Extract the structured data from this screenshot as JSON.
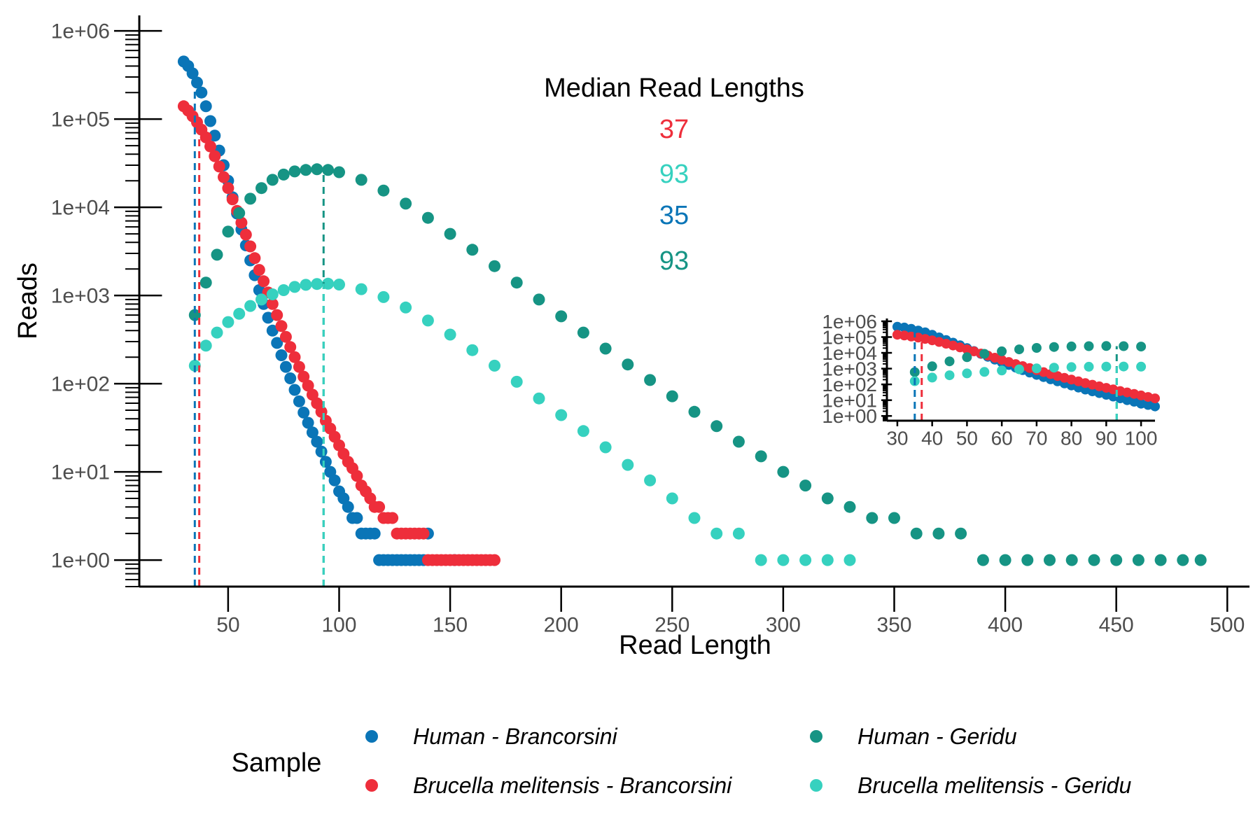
{
  "chart_data": {
    "type": "scatter",
    "xlabel": "Read Length",
    "ylabel": "Reads",
    "y_scale": "log10",
    "xlim": [
      10,
      510
    ],
    "ylim": [
      0.5,
      1500000
    ],
    "x_ticks": [
      "50",
      "100",
      "150",
      "200",
      "250",
      "300",
      "350",
      "400",
      "450",
      "500"
    ],
    "y_ticks": [
      "1e+00",
      "1e+01",
      "1e+02",
      "1e+03",
      "1e+04",
      "1e+05",
      "1e+06"
    ],
    "median_title": "Median Read Lengths",
    "medians": [
      {
        "series": "Brucella melitensis - Brancorsini",
        "value": "37",
        "color": "#ee2e3b"
      },
      {
        "series": "Brucella melitensis - Geridu",
        "value": "93",
        "color": "#36d1bf"
      },
      {
        "series": "Human - Brancorsini",
        "value": "35",
        "color": "#0a75b7"
      },
      {
        "series": "Human - Geridu",
        "value": "93",
        "color": "#169484"
      }
    ],
    "legend": {
      "title": "Sample",
      "position": "bottom",
      "items": [
        {
          "label": "Human - Brancorsini",
          "color": "#0a75b7"
        },
        {
          "label": "Brucella melitensis - Brancorsini",
          "color": "#ee2e3b"
        },
        {
          "label": "Human - Geridu",
          "color": "#169484"
        },
        {
          "label": "Brucella melitensis - Geridu",
          "color": "#36d1bf"
        }
      ]
    },
    "series": [
      {
        "name": "Human - Brancorsini",
        "color": "#0a75b7",
        "median": 35,
        "points": [
          [
            30,
            450000
          ],
          [
            32,
            400000
          ],
          [
            34,
            330000
          ],
          [
            36,
            260000
          ],
          [
            38,
            200000
          ],
          [
            40,
            140000
          ],
          [
            42,
            95000
          ],
          [
            44,
            65000
          ],
          [
            46,
            44000
          ],
          [
            48,
            30000
          ],
          [
            50,
            20000
          ],
          [
            52,
            13000
          ],
          [
            54,
            8500
          ],
          [
            56,
            5600
          ],
          [
            58,
            3700
          ],
          [
            60,
            2500
          ],
          [
            62,
            1700
          ],
          [
            64,
            1150
          ],
          [
            66,
            800
          ],
          [
            68,
            560
          ],
          [
            70,
            400
          ],
          [
            72,
            290
          ],
          [
            74,
            210
          ],
          [
            76,
            155
          ],
          [
            78,
            115
          ],
          [
            80,
            85
          ],
          [
            82,
            63
          ],
          [
            84,
            47
          ],
          [
            86,
            36
          ],
          [
            88,
            28
          ],
          [
            90,
            22
          ],
          [
            92,
            17
          ],
          [
            94,
            13
          ],
          [
            96,
            10
          ],
          [
            98,
            8
          ],
          [
            100,
            6
          ],
          [
            102,
            5
          ],
          [
            104,
            4
          ],
          [
            106,
            3
          ],
          [
            108,
            3
          ],
          [
            110,
            2
          ],
          [
            112,
            2
          ],
          [
            114,
            2
          ],
          [
            116,
            2
          ],
          [
            118,
            1
          ],
          [
            120,
            1
          ],
          [
            122,
            1
          ],
          [
            124,
            1
          ],
          [
            126,
            1
          ],
          [
            128,
            1
          ],
          [
            130,
            1
          ],
          [
            132,
            1
          ],
          [
            134,
            1
          ],
          [
            136,
            1
          ],
          [
            138,
            1
          ],
          [
            140,
            2
          ],
          [
            152,
            1
          ]
        ]
      },
      {
        "name": "Brucella melitensis - Brancorsini",
        "color": "#ee2e3b",
        "median": 37,
        "points": [
          [
            30,
            140000
          ],
          [
            32,
            125000
          ],
          [
            34,
            108000
          ],
          [
            36,
            92000
          ],
          [
            38,
            76000
          ],
          [
            40,
            62000
          ],
          [
            42,
            49000
          ],
          [
            44,
            38000
          ],
          [
            46,
            29000
          ],
          [
            48,
            22000
          ],
          [
            50,
            16500
          ],
          [
            52,
            12300
          ],
          [
            54,
            9100
          ],
          [
            56,
            6700
          ],
          [
            58,
            4900
          ],
          [
            60,
            3600
          ],
          [
            62,
            2650
          ],
          [
            64,
            1950
          ],
          [
            66,
            1450
          ],
          [
            68,
            1080
          ],
          [
            70,
            800
          ],
          [
            72,
            600
          ],
          [
            74,
            450
          ],
          [
            76,
            340
          ],
          [
            78,
            260
          ],
          [
            80,
            200
          ],
          [
            82,
            155
          ],
          [
            84,
            120
          ],
          [
            86,
            95
          ],
          [
            88,
            75
          ],
          [
            90,
            60
          ],
          [
            92,
            48
          ],
          [
            94,
            38
          ],
          [
            96,
            31
          ],
          [
            98,
            25
          ],
          [
            100,
            20
          ],
          [
            102,
            16
          ],
          [
            104,
            13
          ],
          [
            106,
            11
          ],
          [
            108,
            9
          ],
          [
            110,
            7
          ],
          [
            112,
            6
          ],
          [
            114,
            5
          ],
          [
            116,
            4
          ],
          [
            118,
            4
          ],
          [
            120,
            3
          ],
          [
            122,
            3
          ],
          [
            124,
            3
          ],
          [
            126,
            2
          ],
          [
            128,
            2
          ],
          [
            130,
            2
          ],
          [
            132,
            2
          ],
          [
            134,
            2
          ],
          [
            136,
            2
          ],
          [
            138,
            2
          ],
          [
            140,
            1
          ],
          [
            142,
            1
          ],
          [
            144,
            1
          ],
          [
            146,
            1
          ],
          [
            148,
            1
          ],
          [
            150,
            1
          ],
          [
            152,
            1
          ],
          [
            154,
            1
          ],
          [
            156,
            1
          ],
          [
            158,
            1
          ],
          [
            160,
            1
          ],
          [
            162,
            1
          ],
          [
            164,
            1
          ],
          [
            166,
            1
          ],
          [
            168,
            1
          ],
          [
            170,
            1
          ]
        ]
      },
      {
        "name": "Human - Geridu",
        "color": "#169484",
        "median": 93,
        "points": [
          [
            35,
            600
          ],
          [
            40,
            1400
          ],
          [
            45,
            2900
          ],
          [
            50,
            5300
          ],
          [
            55,
            8600
          ],
          [
            60,
            12500
          ],
          [
            65,
            16500
          ],
          [
            70,
            20500
          ],
          [
            75,
            23500
          ],
          [
            80,
            25500
          ],
          [
            85,
            26500
          ],
          [
            90,
            27000
          ],
          [
            95,
            26500
          ],
          [
            100,
            25000
          ],
          [
            110,
            20500
          ],
          [
            120,
            15500
          ],
          [
            130,
            11000
          ],
          [
            140,
            7600
          ],
          [
            150,
            5000
          ],
          [
            160,
            3300
          ],
          [
            170,
            2150
          ],
          [
            180,
            1400
          ],
          [
            190,
            900
          ],
          [
            200,
            580
          ],
          [
            210,
            380
          ],
          [
            220,
            250
          ],
          [
            230,
            165
          ],
          [
            240,
            110
          ],
          [
            250,
            72
          ],
          [
            260,
            48
          ],
          [
            270,
            33
          ],
          [
            280,
            22
          ],
          [
            290,
            15
          ],
          [
            300,
            10
          ],
          [
            310,
            7
          ],
          [
            320,
            5
          ],
          [
            330,
            4
          ],
          [
            340,
            3
          ],
          [
            350,
            3
          ],
          [
            360,
            2
          ],
          [
            370,
            2
          ],
          [
            380,
            2
          ],
          [
            390,
            1
          ],
          [
            400,
            1
          ],
          [
            410,
            1
          ],
          [
            420,
            1
          ],
          [
            430,
            1
          ],
          [
            440,
            1
          ],
          [
            450,
            1
          ],
          [
            460,
            1
          ],
          [
            470,
            1
          ],
          [
            480,
            1
          ],
          [
            488,
            1
          ]
        ]
      },
      {
        "name": "Brucella melitensis - Geridu",
        "color": "#36d1bf",
        "median": 93,
        "points": [
          [
            35,
            160
          ],
          [
            40,
            270
          ],
          [
            45,
            380
          ],
          [
            50,
            500
          ],
          [
            55,
            620
          ],
          [
            60,
            760
          ],
          [
            65,
            900
          ],
          [
            70,
            1030
          ],
          [
            75,
            1150
          ],
          [
            80,
            1250
          ],
          [
            85,
            1320
          ],
          [
            90,
            1350
          ],
          [
            95,
            1360
          ],
          [
            100,
            1330
          ],
          [
            110,
            1180
          ],
          [
            120,
            960
          ],
          [
            130,
            730
          ],
          [
            140,
            520
          ],
          [
            150,
            360
          ],
          [
            160,
            240
          ],
          [
            170,
            160
          ],
          [
            180,
            105
          ],
          [
            190,
            68
          ],
          [
            200,
            44
          ],
          [
            210,
            29
          ],
          [
            220,
            19
          ],
          [
            230,
            12
          ],
          [
            240,
            8
          ],
          [
            250,
            5
          ],
          [
            260,
            3
          ],
          [
            270,
            2
          ],
          [
            280,
            2
          ],
          [
            290,
            1
          ],
          [
            300,
            1
          ],
          [
            310,
            1
          ],
          [
            320,
            1
          ],
          [
            330,
            1
          ]
        ]
      }
    ],
    "inset": {
      "xlim": [
        27,
        104
      ],
      "ylim": [
        0.5,
        1500000
      ],
      "x_ticks": [
        "30",
        "40",
        "50",
        "60",
        "70",
        "80",
        "90",
        "100"
      ],
      "y_ticks": [
        "1e+00",
        "1e+01",
        "1e+02",
        "1e+03",
        "1e+04",
        "1e+05",
        "1e+06"
      ]
    }
  }
}
